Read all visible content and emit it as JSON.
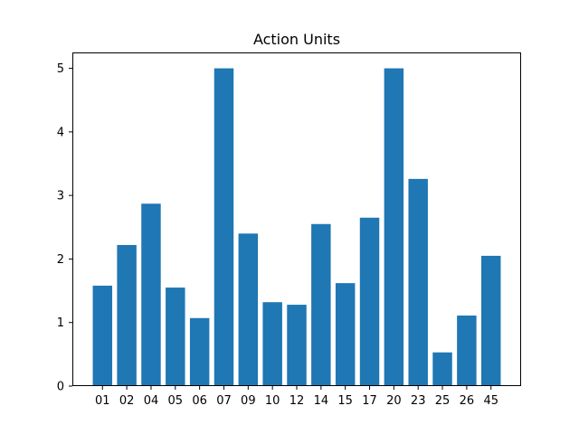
{
  "chart_data": {
    "type": "bar",
    "title": "Action Units",
    "xlabel": "",
    "ylabel": "",
    "categories": [
      "01",
      "02",
      "04",
      "05",
      "06",
      "07",
      "09",
      "10",
      "12",
      "14",
      "15",
      "17",
      "20",
      "23",
      "25",
      "26",
      "45"
    ],
    "values": [
      1.58,
      2.22,
      2.87,
      1.55,
      1.07,
      5.0,
      2.4,
      1.32,
      1.28,
      2.55,
      1.62,
      2.65,
      5.0,
      3.26,
      0.53,
      1.11,
      2.05
    ],
    "ylim": [
      0,
      5.25
    ],
    "yticks": [
      "0",
      "1",
      "2",
      "3",
      "4",
      "5"
    ],
    "bar_color": "#1f77b4",
    "grid": false,
    "legend": "none"
  }
}
